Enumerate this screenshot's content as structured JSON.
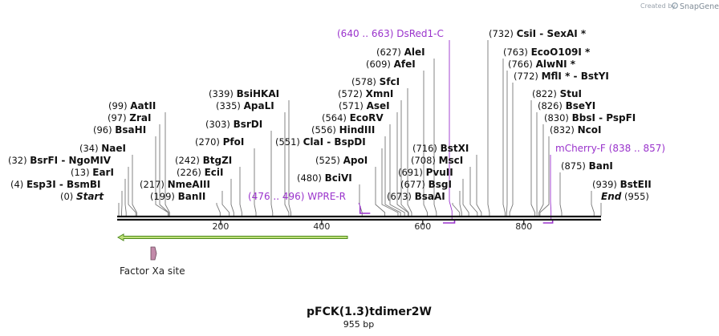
{
  "map": {
    "title": "pFCK(1.3)tdimer2W",
    "length_label": "955 bp",
    "watermark_text": "Created by",
    "watermark_brand": "SnapGene",
    "ticks": [
      "200",
      "400",
      "600",
      "800"
    ],
    "primer_feature_label": "Factor Xa site"
  },
  "colors": {
    "feature": "#9a33cc",
    "arrow_fill": "#bfe07a",
    "arrow_edge": "#4e8a1c",
    "site_marker": "#c28aa9"
  },
  "sites": [
    {
      "pos": "(4)",
      "name": "Esp3I",
      "sep": "-",
      "name2": "BsmBI"
    },
    {
      "pos": "(13)",
      "name": "EarI"
    },
    {
      "pos": "(32)",
      "name": "BsrFI",
      "sep": "-",
      "name2": "NgoMIV"
    },
    {
      "pos": "(34)",
      "name": "NaeI"
    },
    {
      "pos": "(96)",
      "name": "BsaHI"
    },
    {
      "pos": "(97)",
      "name": "ZraI"
    },
    {
      "pos": "(99)",
      "name": "AatII"
    },
    {
      "pos": "(199)",
      "name": "BanII"
    },
    {
      "pos": "(217)",
      "name": "NmeAIII"
    },
    {
      "pos": "(226)",
      "name": "EciI"
    },
    {
      "pos": "(242)",
      "name": "BtgZI"
    },
    {
      "pos": "(270)",
      "name": "PfoI"
    },
    {
      "pos": "(303)",
      "name": "BsrDI"
    },
    {
      "pos": "(335)",
      "name": "ApaLI"
    },
    {
      "pos": "(339)",
      "name": "BsiHKAI"
    },
    {
      "pos": "(480)",
      "name": "BciVI"
    },
    {
      "pos": "(525)",
      "name": "ApoI"
    },
    {
      "pos": "(551)",
      "name": "ClaI",
      "sep": "-",
      "name2": "BspDI"
    },
    {
      "pos": "(556)",
      "name": "HindIII"
    },
    {
      "pos": "(564)",
      "name": "EcoRV"
    },
    {
      "pos": "(571)",
      "name": "AseI"
    },
    {
      "pos": "(572)",
      "name": "XmnI"
    },
    {
      "pos": "(578)",
      "name": "SfcI"
    },
    {
      "pos": "(609)",
      "name": "AfeI"
    },
    {
      "pos": "(627)",
      "name": "AleI"
    },
    {
      "pos": "(673)",
      "name": "BsaAI"
    },
    {
      "pos": "(677)",
      "name": "BsgI"
    },
    {
      "pos": "(691)",
      "name": "PvuII"
    },
    {
      "pos": "(708)",
      "name": "MscI"
    },
    {
      "pos": "(716)",
      "name": "BstXI"
    },
    {
      "pos": "(732)",
      "name": "CsiI",
      "sep": "-",
      "name2": "SexAI *"
    },
    {
      "pos": "(763)",
      "name": "EcoO109I *"
    },
    {
      "pos": "(766)",
      "name": "AlwNI *"
    },
    {
      "pos": "(772)",
      "name": "MflI *",
      "sep": "-",
      "name2": "BstYI"
    },
    {
      "pos": "(822)",
      "name": "StuI"
    },
    {
      "pos": "(826)",
      "name": "BseYI"
    },
    {
      "pos": "(830)",
      "name": "BbsI",
      "sep": "-",
      "name2": "PspFI"
    },
    {
      "pos": "(832)",
      "name": "NcoI"
    },
    {
      "pos": "(875)",
      "name": "BanI"
    },
    {
      "pos": "(939)",
      "name": "BstEII"
    }
  ],
  "ends": [
    {
      "pos": "(0)",
      "name": "Start"
    },
    {
      "pos": "(955)",
      "name": "End"
    }
  ],
  "features": [
    {
      "name": "WPRE-R",
      "range": "(476 .. 496)"
    },
    {
      "name": "DsRed1-C",
      "range": "(640 .. 663)"
    },
    {
      "name": "mCherry-F",
      "range": "(838 .. 857)"
    }
  ]
}
